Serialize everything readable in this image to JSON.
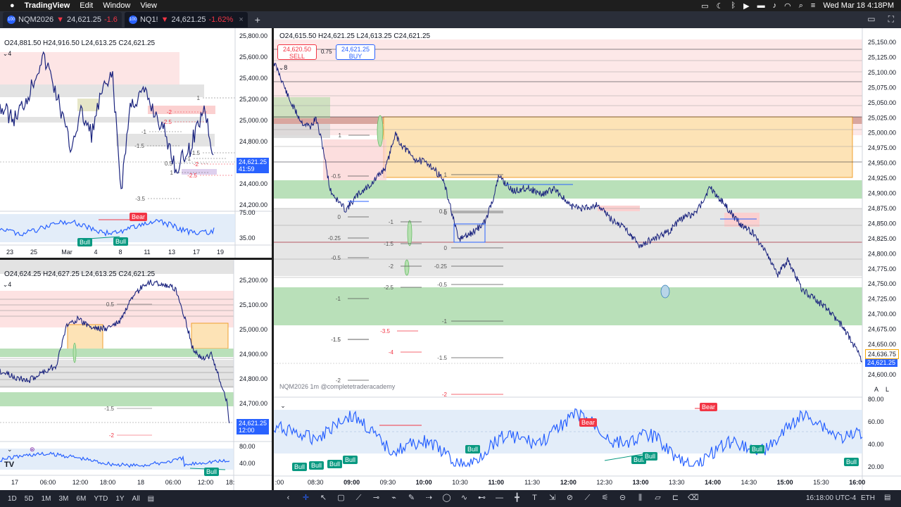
{
  "menubar": {
    "apple": "",
    "app": "TradingView",
    "items": [
      "Edit",
      "Window",
      "View"
    ],
    "clock": "Wed Mar 18  4:18PM"
  },
  "tabs": [
    {
      "symbol": "NQM2026",
      "arrow": "▼",
      "price": "24,621.25",
      "change": "-1.6"
    },
    {
      "symbol": "NQ1!",
      "arrow": "▼",
      "price": "24,621.25",
      "change": "-1.62%"
    }
  ],
  "topleft": {
    "ohlc": "O24,881.50  H24,916.50  L24,613.25  C24,621.25",
    "collapse_count": "4",
    "yaxis": [
      "25,800.00",
      "25,600.00",
      "25,400.00",
      "25,200.00",
      "25,000.00",
      "24,800.00",
      "24,600.00",
      "24,400.00",
      "24,200.00"
    ],
    "price": "24,621.25",
    "countdown": "41:59",
    "osc_axis": [
      "75.00",
      "35.00"
    ],
    "bear": "Bear",
    "bull": "Bull",
    "xaxis": [
      "23",
      "25",
      "Mar",
      "4",
      "8",
      "11",
      "13",
      "17",
      "19"
    ],
    "levels": [
      "-1",
      "-1.5",
      "-2",
      "-2.5",
      "0.5",
      "1",
      "-3.5",
      "1",
      "-2",
      "-2.5",
      "-1",
      "-1.5",
      "0"
    ]
  },
  "bottomleft": {
    "ohlc": "O24,624.25  H24,627.25  L24,613.25  C24,621.25",
    "collapse_count": "4",
    "yaxis": [
      "25,200.00",
      "25,100.00",
      "25,000.00",
      "24,900.00",
      "24,800.00",
      "24,700.00"
    ],
    "price": "24,621.25",
    "countdown": "12:00",
    "osc_axis": [
      "80.00",
      "40.00"
    ],
    "bull": "Bull",
    "xaxis": [
      "17",
      "06:00",
      "12:00",
      "18:00",
      "18",
      "06:00",
      "12:00",
      "18:"
    ],
    "levels": [
      "0.5",
      "-1.5",
      "-2"
    ]
  },
  "main": {
    "ohlc": "O24,615.50  H24,621.25  L24,613.25  C24,621.25",
    "sell_price": "24,620.50",
    "sell_label": "SELL",
    "spread": "0.75",
    "buy_price": "24,621.25",
    "buy_label": "BUY",
    "collapse_count": "8",
    "yaxis": [
      "25,150.00",
      "25,125.00",
      "25,100.00",
      "25,075.00",
      "25,050.00",
      "25,025.00",
      "25,000.00",
      "24,975.00",
      "24,950.00",
      "24,925.00",
      "24,900.00",
      "24,875.00",
      "24,850.00",
      "24,825.00",
      "24,800.00",
      "24,775.00",
      "24,750.00",
      "24,725.00",
      "24,700.00",
      "24,675.00",
      "24,650.00",
      "24,625.00",
      "24,600.00"
    ],
    "price_box": "24,621.25",
    "price_box2": "24,636.75",
    "watermark": "NQM2026  1m  @completetraderacademy",
    "osc_axis": [
      "80.00",
      "60.00",
      "40.00",
      "20.00"
    ],
    "bear": "Bear",
    "bull": "Bull",
    "xaxis": [
      ":00",
      "08:30",
      "09:00",
      "09:30",
      "10:00",
      "10:30",
      "11:00",
      "11:30",
      "12:00",
      "12:30",
      "13:00",
      "13:30",
      "14:00",
      "14:30",
      "15:00",
      "15:30",
      "16:00"
    ],
    "levels_left": [
      "1",
      "-0.5",
      "0",
      "-1",
      "-1.5",
      "-2",
      "-2.5",
      "-3.5",
      "-4",
      "-1.5",
      "-2",
      "-0.25",
      "-0.5",
      "-1",
      "-1.5"
    ],
    "levels_mid": [
      "1",
      "0",
      "0.5",
      "0",
      "-0.25",
      "-0.5",
      "-1",
      "-1.5",
      "-2"
    ],
    "scale_a": "A",
    "scale_l": "L"
  },
  "bottombar": {
    "ranges": [
      "1D",
      "5D",
      "1M",
      "3M",
      "6M",
      "YTD",
      "1Y",
      "All"
    ],
    "time": "16:18:00 UTC-4",
    "session": "ETH"
  },
  "colors": {
    "candle": "#1a237e",
    "red_zone": "#fde2e2",
    "green_zone": "#b9e0b9",
    "orange_zone": "#fde3b6",
    "gray_zone": "#e3e3e3",
    "osc": "#2962ff",
    "accent": "#2962ff",
    "down": "#f23645"
  }
}
